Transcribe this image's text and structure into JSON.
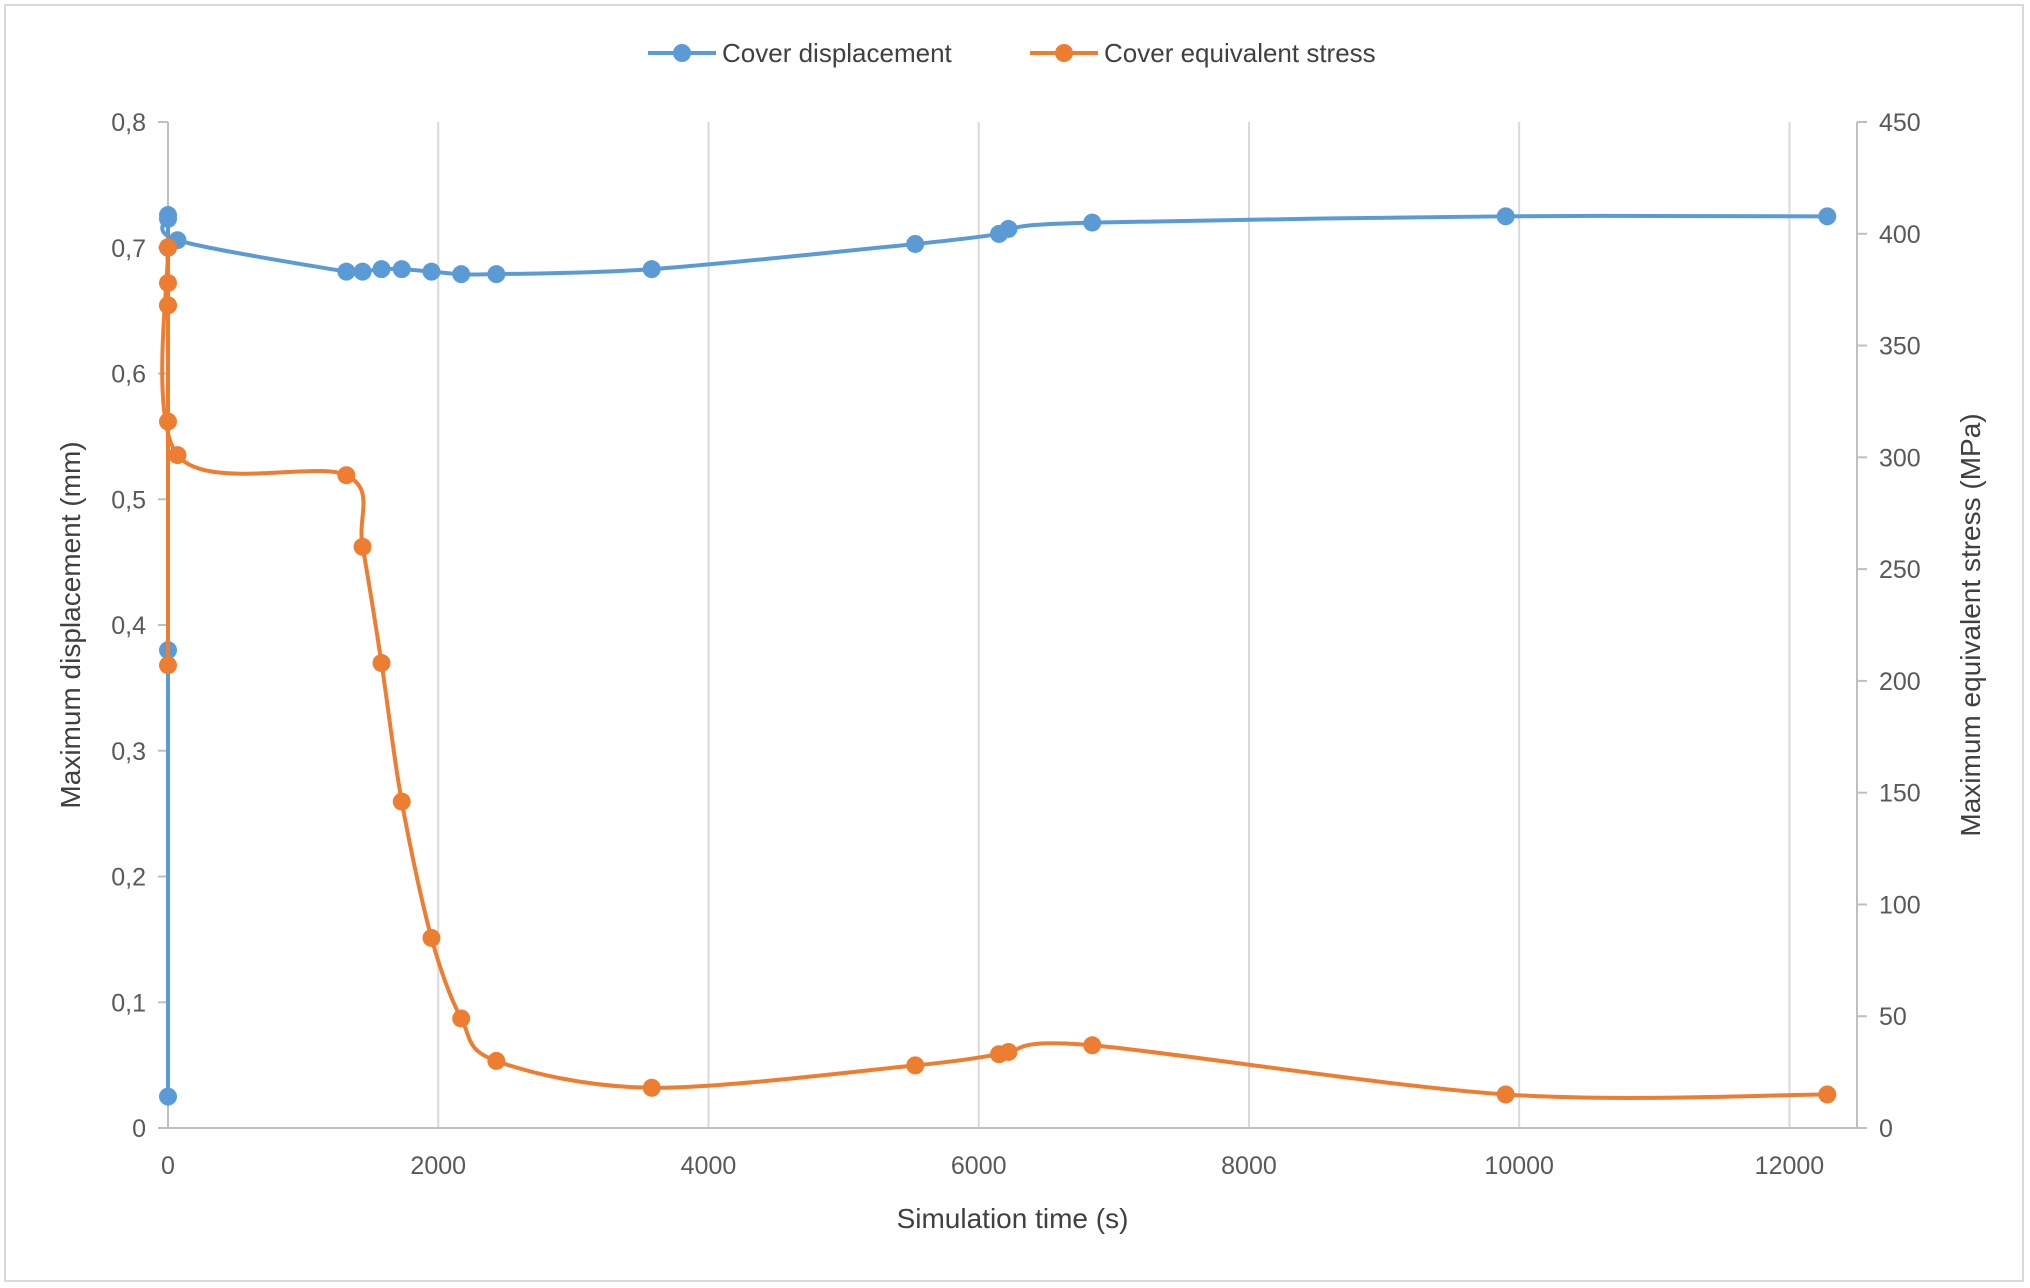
{
  "chart_data": {
    "type": "line",
    "smooth": true,
    "legend_position": "top-center",
    "grid": "vertical",
    "xlabel": "Simulation time (s)",
    "ylabel_left": "Maximum displacement (mm)",
    "ylabel_right": "Maximum equivalent stress (MPa)",
    "xlim": [
      0,
      12500
    ],
    "ylim_left": [
      0,
      0.8
    ],
    "ylim_right": [
      0,
      450
    ],
    "x_ticks": [
      "0",
      "2000",
      "4000",
      "6000",
      "8000",
      "10000",
      "12000"
    ],
    "y_left_ticks": [
      "0",
      "0,1",
      "0,2",
      "0,3",
      "0,4",
      "0,5",
      "0,6",
      "0,7",
      "0,8"
    ],
    "y_right_ticks": [
      "0",
      "50",
      "100",
      "150",
      "200",
      "250",
      "300",
      "350",
      "400",
      "450"
    ],
    "series": [
      {
        "name": "Cover displacement",
        "axis": "left",
        "color": "#5B9BD5",
        "x": [
          0,
          0,
          0,
          0,
          0,
          70,
          1320,
          1440,
          1580,
          1730,
          1950,
          2170,
          2430,
          3580,
          5530,
          6150,
          6220,
          6840,
          9900,
          12280
        ],
        "y": [
          0.025,
          0.38,
          0.7,
          0.723,
          0.726,
          0.706,
          0.681,
          0.681,
          0.683,
          0.683,
          0.681,
          0.679,
          0.679,
          0.683,
          0.703,
          0.711,
          0.715,
          0.72,
          0.725,
          0.725
        ]
      },
      {
        "name": "Cover equivalent stress",
        "axis": "right",
        "color": "#ED7D31",
        "x": [
          0,
          0,
          0,
          0,
          0,
          0,
          70,
          1320,
          1440,
          1580,
          1730,
          1950,
          2170,
          2430,
          3580,
          5530,
          6150,
          6220,
          6840,
          9900,
          12280
        ],
        "y": [
          207,
          368,
          316,
          368,
          378,
          394,
          301,
          292,
          260,
          208,
          146,
          85,
          49,
          30,
          18,
          28,
          33,
          34,
          37,
          15,
          15
        ]
      }
    ]
  }
}
